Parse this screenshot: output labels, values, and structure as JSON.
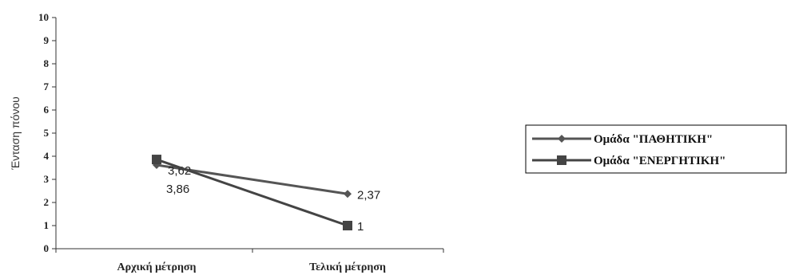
{
  "chart_data": {
    "type": "line",
    "title": "",
    "xlabel": "",
    "ylabel": "Ένταση πόνου",
    "ylim": [
      0,
      10
    ],
    "yticks": [
      "0",
      "1",
      "2",
      "3",
      "4",
      "5",
      "6",
      "7",
      "8",
      "9",
      "10"
    ],
    "categories": [
      "Αρχική μέτρηση",
      "Τελική μέτρηση"
    ],
    "series": [
      {
        "name": "Ομάδα \"ΠΑΘΗΤΙΚΗ\"",
        "values": [
          3.62,
          2.37
        ],
        "labels": [
          "3,62",
          "2,37"
        ],
        "marker": "diamond",
        "color": "#555555"
      },
      {
        "name": "Ομάδα \"ΕΝΕΡΓΗΤΙΚΗ\"",
        "values": [
          3.86,
          1
        ],
        "labels": [
          "3,86",
          "1"
        ],
        "marker": "square",
        "color": "#444444"
      }
    ],
    "legend": "right",
    "grid": false
  }
}
